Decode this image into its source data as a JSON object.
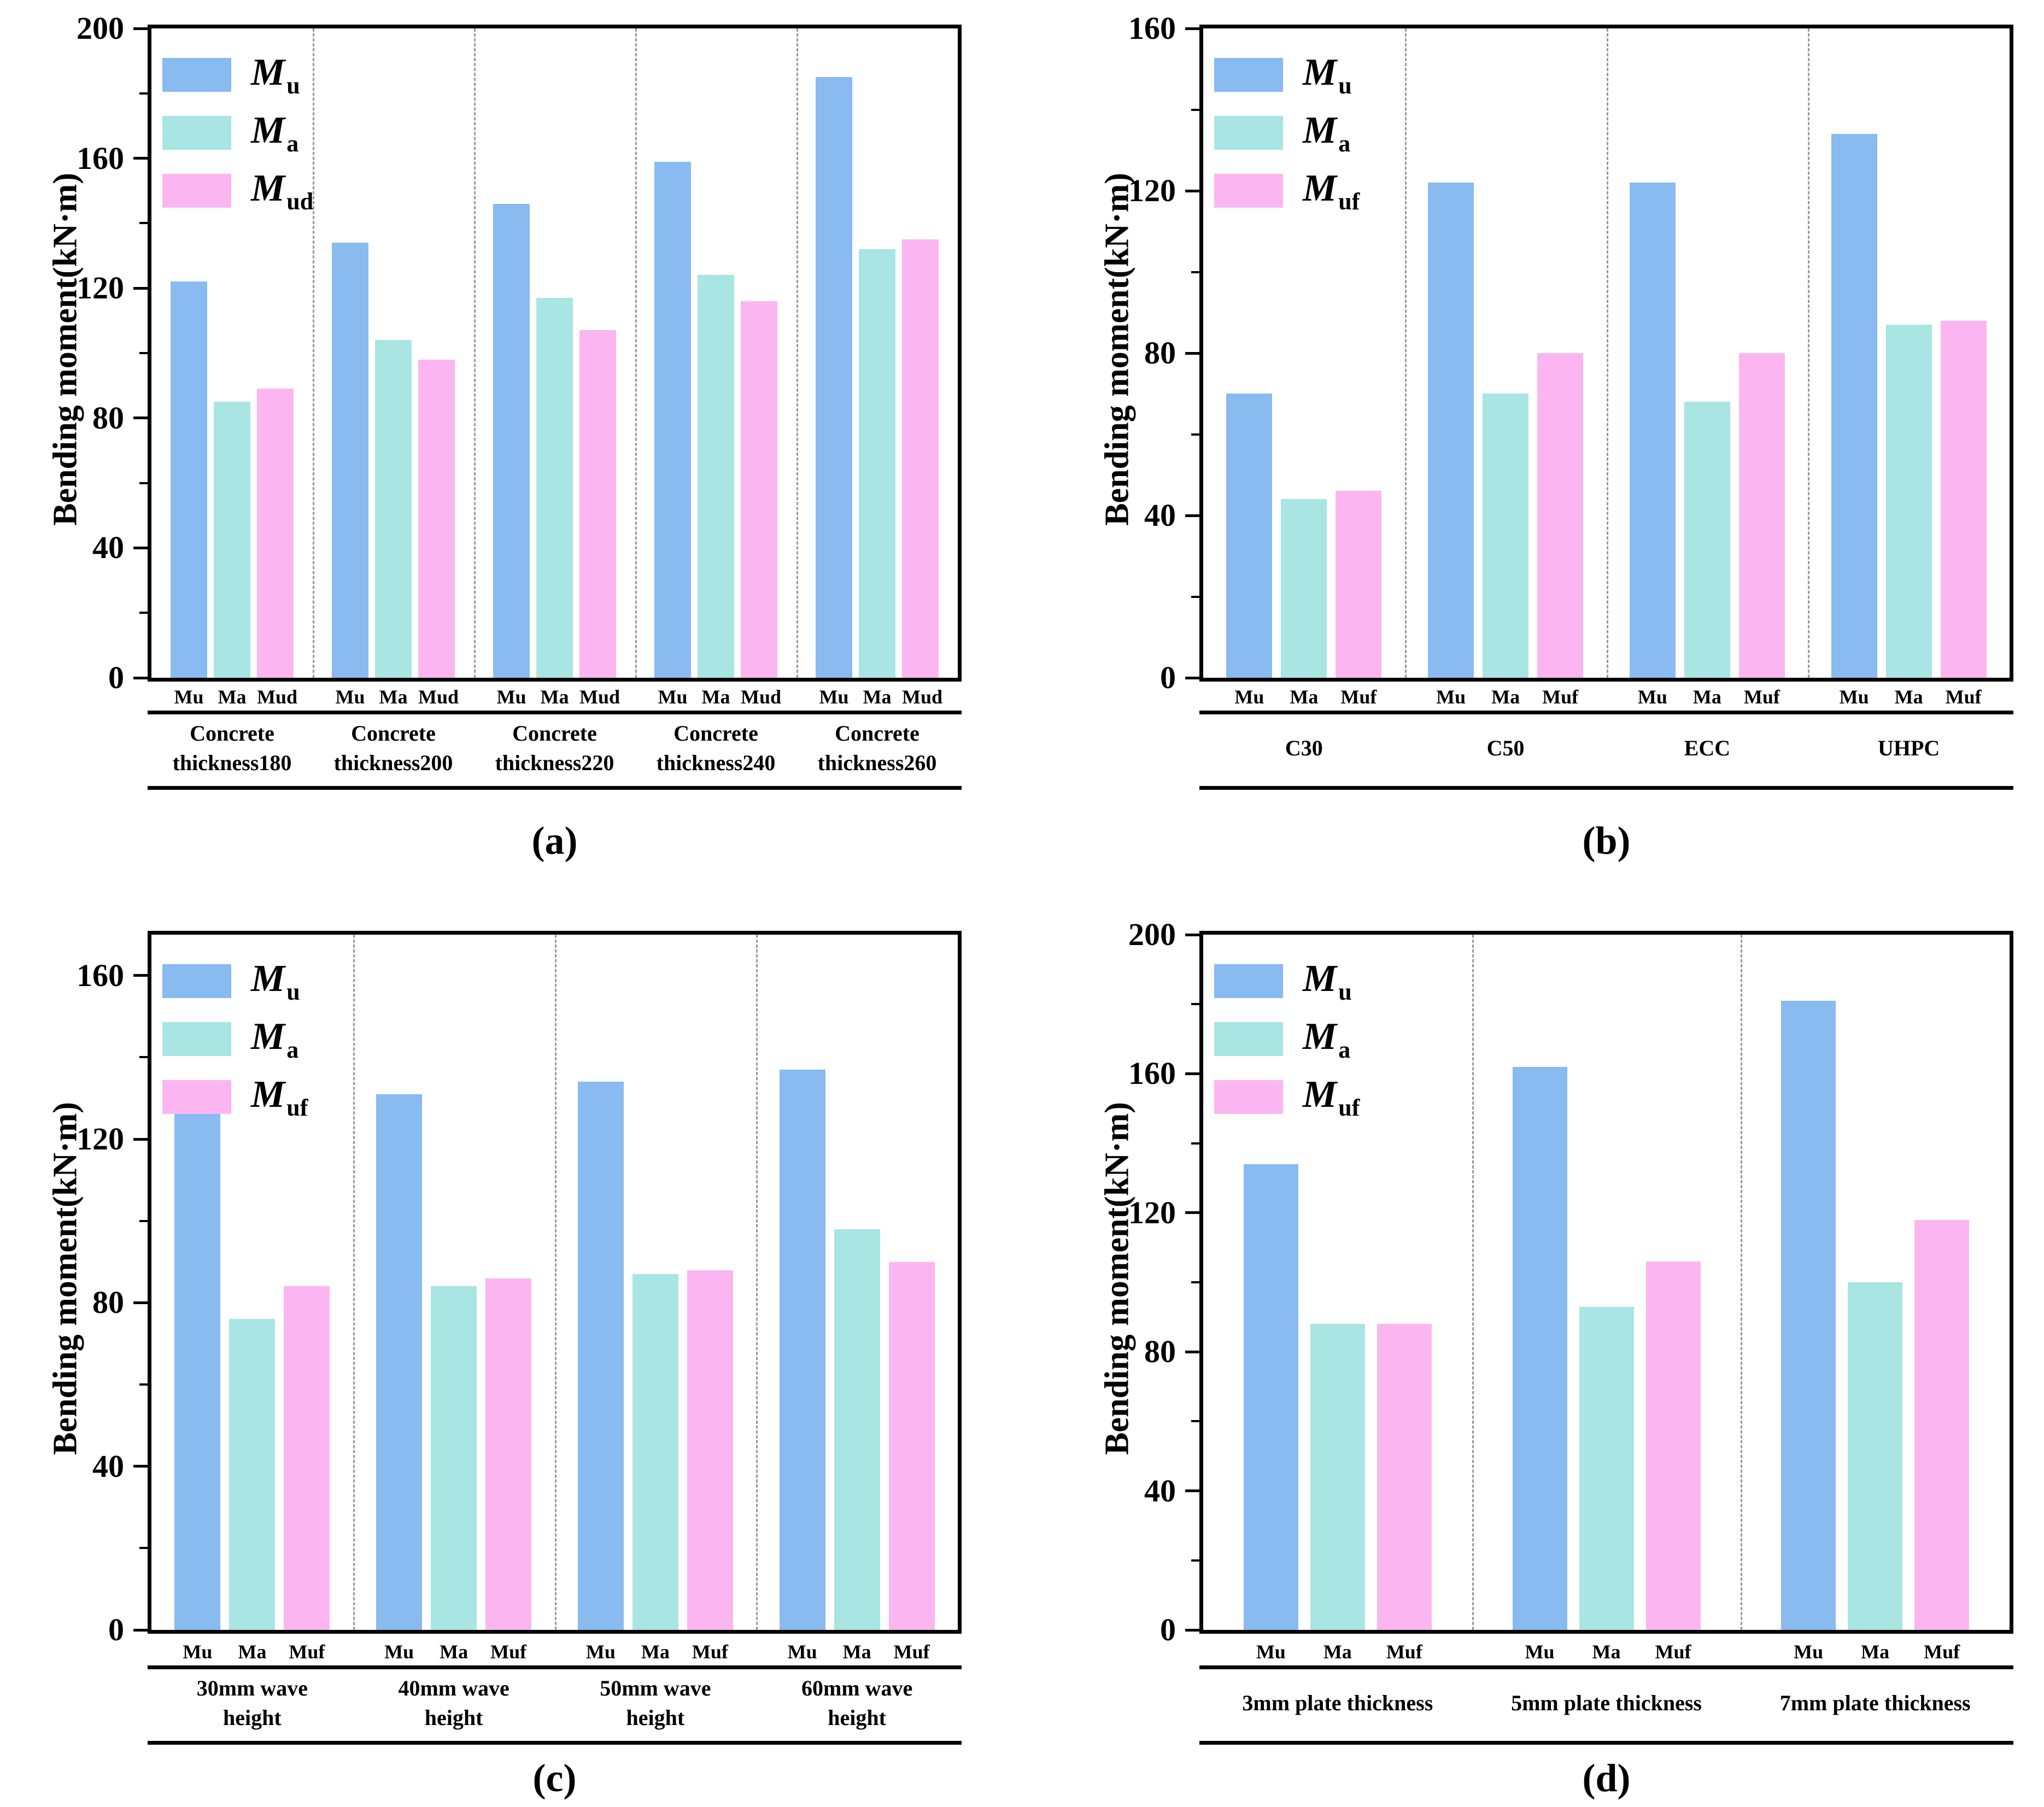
{
  "figure": {
    "background": "#ffffff",
    "text_color": "#000000",
    "separator_color": "#9a9a9a",
    "series_palette": {
      "Mu": "#89baf0",
      "Ma": "#a9e5e2",
      "Mud": "#fbb6f2",
      "Muf": "#fbb6f2"
    }
  },
  "chart_data": [
    {
      "id": "a",
      "type": "bar",
      "caption": "(a)",
      "ylabel": "Bending moment(kN·m)",
      "ylim": [
        0,
        200
      ],
      "ymax_view": 200,
      "yticks_major": [
        0,
        40,
        80,
        120,
        160,
        200
      ],
      "yticks_minor": [
        20,
        60,
        100,
        140,
        180
      ],
      "grid": false,
      "legend_position": "top-left",
      "legend": [
        {
          "symbol": "M",
          "sub": "u"
        },
        {
          "symbol": "M",
          "sub": "a"
        },
        {
          "symbol": "M",
          "sub": "ud"
        }
      ],
      "bar_tick_labels": [
        "Mu",
        "Ma",
        "Mud"
      ],
      "categories": [
        "Concrete thickness180",
        "Concrete thickness200",
        "Concrete thickness220",
        "Concrete thickness240",
        "Concrete thickness260"
      ],
      "category_label_lines": [
        [
          "Concrete",
          "thickness180"
        ],
        [
          "Concrete",
          "thickness200"
        ],
        [
          "Concrete",
          "thickness220"
        ],
        [
          "Concrete",
          "thickness240"
        ],
        [
          "Concrete",
          "thickness260"
        ]
      ],
      "series": [
        {
          "name": "Mu",
          "color": "#89baf0",
          "values": [
            122,
            134,
            146,
            159,
            185
          ]
        },
        {
          "name": "Ma",
          "color": "#a9e5e2",
          "values": [
            85,
            104,
            117,
            124,
            132
          ]
        },
        {
          "name": "Mud",
          "color": "#fbb6f2",
          "values": [
            89,
            98,
            107,
            116,
            135
          ]
        }
      ]
    },
    {
      "id": "b",
      "type": "bar",
      "caption": "(b)",
      "ylabel": "Bending moment(kN·m)",
      "ylim": [
        0,
        160
      ],
      "ymax_view": 160,
      "yticks_major": [
        0,
        40,
        80,
        120,
        160
      ],
      "yticks_minor": [
        20,
        60,
        100,
        140
      ],
      "grid": false,
      "legend_position": "top-left",
      "legend": [
        {
          "symbol": "M",
          "sub": "u"
        },
        {
          "symbol": "M",
          "sub": "a"
        },
        {
          "symbol": "M",
          "sub": "uf"
        }
      ],
      "bar_tick_labels": [
        "Mu",
        "Ma",
        "Muf"
      ],
      "categories": [
        "C30",
        "C50",
        "ECC",
        "UHPC"
      ],
      "category_label_lines": [
        [
          "C30"
        ],
        [
          "C50"
        ],
        [
          "ECC"
        ],
        [
          "UHPC"
        ]
      ],
      "series": [
        {
          "name": "Mu",
          "color": "#89baf0",
          "values": [
            70,
            122,
            122,
            134
          ]
        },
        {
          "name": "Ma",
          "color": "#a9e5e2",
          "values": [
            44,
            70,
            68,
            87
          ]
        },
        {
          "name": "Muf",
          "color": "#fbb6f2",
          "values": [
            46,
            80,
            80,
            88
          ]
        }
      ]
    },
    {
      "id": "c",
      "type": "bar",
      "caption": "(c)",
      "ylabel": "Bending moment(kN·m)",
      "ylim": [
        0,
        170
      ],
      "ymax_view": 170,
      "yticks_major": [
        0,
        40,
        80,
        120,
        160
      ],
      "yticks_minor": [
        20,
        60,
        100,
        140
      ],
      "grid": false,
      "legend_position": "top-left",
      "legend": [
        {
          "symbol": "M",
          "sub": "u"
        },
        {
          "symbol": "M",
          "sub": "a"
        },
        {
          "symbol": "M",
          "sub": "uf"
        }
      ],
      "bar_tick_labels": [
        "Mu",
        "Ma",
        "Muf"
      ],
      "categories": [
        "30mm wave height",
        "40mm wave height",
        "50mm wave height",
        "60mm wave height"
      ],
      "category_label_lines": [
        [
          "30mm wave",
          "height"
        ],
        [
          "40mm wave",
          "height"
        ],
        [
          "50mm wave",
          "height"
        ],
        [
          "60mm wave",
          "height"
        ]
      ],
      "series": [
        {
          "name": "Mu",
          "color": "#89baf0",
          "values": [
            128,
            131,
            134,
            137
          ]
        },
        {
          "name": "Ma",
          "color": "#a9e5e2",
          "values": [
            76,
            84,
            87,
            98
          ]
        },
        {
          "name": "Muf",
          "color": "#fbb6f2",
          "values": [
            84,
            86,
            88,
            90
          ]
        }
      ]
    },
    {
      "id": "d",
      "type": "bar",
      "caption": "(d)",
      "ylabel": "Bending moment(kN·m)",
      "ylim": [
        0,
        200
      ],
      "ymax_view": 200,
      "yticks_major": [
        0,
        40,
        80,
        120,
        160,
        200
      ],
      "yticks_minor": [
        20,
        60,
        100,
        140,
        180
      ],
      "grid": false,
      "legend_position": "top-left",
      "legend": [
        {
          "symbol": "M",
          "sub": "u"
        },
        {
          "symbol": "M",
          "sub": "a"
        },
        {
          "symbol": "M",
          "sub": "uf"
        }
      ],
      "bar_tick_labels": [
        "Mu",
        "Ma",
        "Muf"
      ],
      "categories": [
        "3mm plate thickness",
        "5mm plate thickness",
        "7mm plate thickness"
      ],
      "category_label_lines": [
        [
          "3mm plate thickness"
        ],
        [
          "5mm plate thickness"
        ],
        [
          "7mm plate thickness"
        ]
      ],
      "series": [
        {
          "name": "Mu",
          "color": "#89baf0",
          "values": [
            134,
            162,
            181
          ]
        },
        {
          "name": "Ma",
          "color": "#a9e5e2",
          "values": [
            88,
            93,
            100
          ]
        },
        {
          "name": "Muf",
          "color": "#fbb6f2",
          "values": [
            88,
            106,
            118
          ]
        }
      ]
    }
  ]
}
